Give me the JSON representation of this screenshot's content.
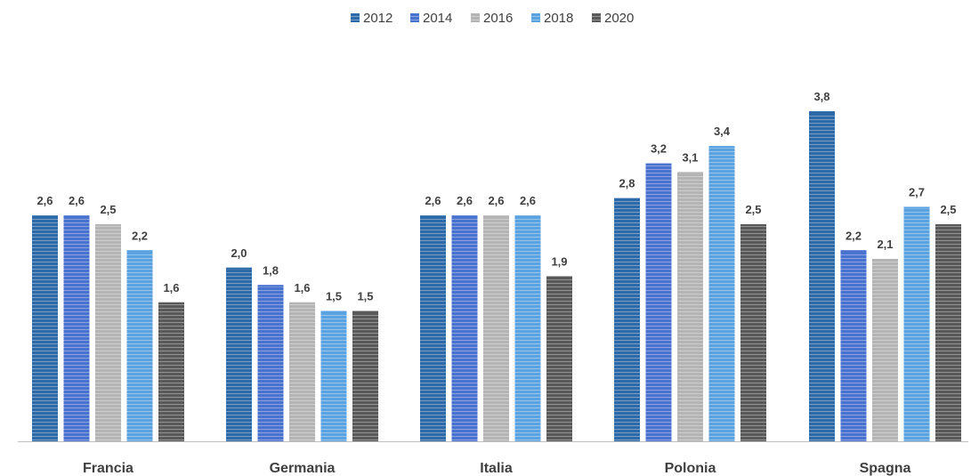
{
  "chart_data": {
    "type": "bar",
    "title": "",
    "xlabel": "",
    "ylabel": "",
    "categories": [
      "Francia",
      "Germania",
      "Italia",
      "Polonia",
      "Spagna"
    ],
    "ylim": [
      0,
      4.0
    ],
    "grid": false,
    "legend_position": "top",
    "series": [
      {
        "name": "2012",
        "color": "#2e6aa8",
        "values": [
          2.6,
          2.0,
          2.6,
          2.8,
          3.8
        ],
        "labels": [
          "2,6",
          "2,0",
          "2,6",
          "2,8",
          "3,8"
        ]
      },
      {
        "name": "2014",
        "color": "#4a72cf",
        "values": [
          2.6,
          1.8,
          2.6,
          3.2,
          2.2
        ],
        "labels": [
          "2,6",
          "1,8",
          "2,6",
          "3,2",
          "2,2"
        ]
      },
      {
        "name": "2016",
        "color": "#b4b4b4",
        "values": [
          2.5,
          1.6,
          2.6,
          3.1,
          2.1
        ],
        "labels": [
          "2,5",
          "1,6",
          "2,6",
          "3,1",
          "2,1"
        ]
      },
      {
        "name": "2018",
        "color": "#5aa2e0",
        "values": [
          2.2,
          1.5,
          2.6,
          3.4,
          2.7
        ],
        "labels": [
          "2,2",
          "1,5",
          "2,6",
          "3,4",
          "2,7"
        ]
      },
      {
        "name": "2020",
        "color": "#595959",
        "values": [
          1.6,
          1.5,
          1.9,
          2.5,
          2.5
        ],
        "labels": [
          "1,6",
          "1,5",
          "1,9",
          "2,5",
          "2,5"
        ]
      }
    ]
  }
}
